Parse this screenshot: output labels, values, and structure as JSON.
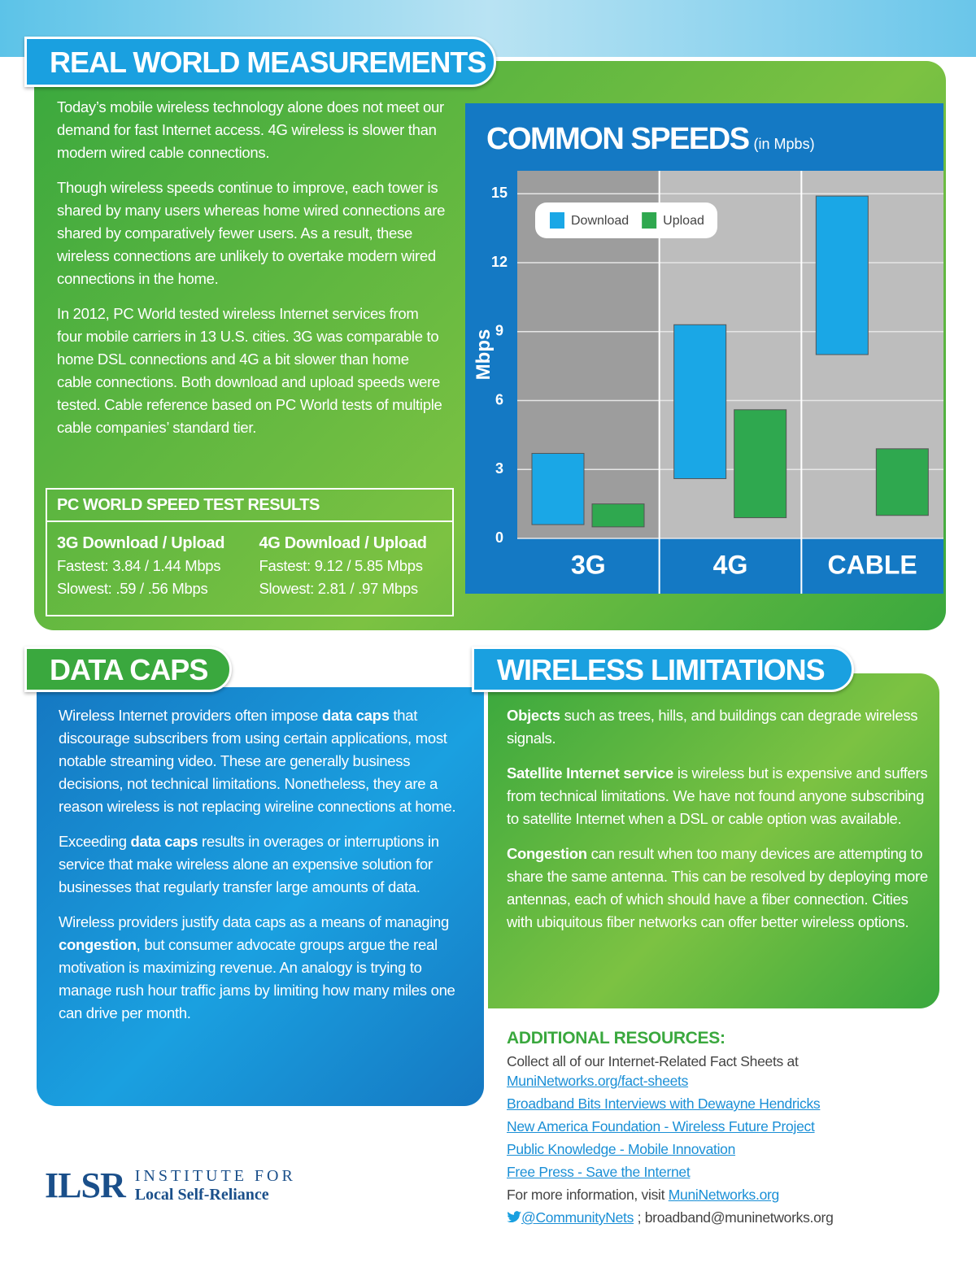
{
  "measurements": {
    "title": "REAL WORLD MEASUREMENTS",
    "paragraphs": [
      [
        "Today’s mobile wireless technology alone does not meet our demand for fast Internet access. 4G wireless is slower than modern wired cable connections."
      ],
      [
        "Though wireless speeds continue to improve, each tower is shared by many users whereas home wired connections are shared by comparatively fewer users. As a result, these wireless connections are unlikely to overtake modern wired connections in the home."
      ],
      [
        "In 2012, PC World tested wireless Internet services from four mobile carriers in 13 U.S. cities. 3G was comparable to home DSL connections and 4G a bit slower than home cable connections. Both download and upload speeds were tested. Cable reference based on PC World tests of multiple cable companies’ standard tier."
      ]
    ],
    "test_results": {
      "title": "PC WORLD SPEED TEST RESULTS",
      "columns": [
        {
          "heading": "3G Download / Upload",
          "rows": [
            "Fastest: 3.84 / 1.44 Mbps",
            "Slowest: .59 / .56 Mbps"
          ]
        },
        {
          "heading": "4G Download / Upload",
          "rows": [
            "Fastest: 9.12 / 5.85 Mbps",
            "Slowest: 2.81 / .97 Mbps"
          ]
        }
      ]
    }
  },
  "chart_data": {
    "type": "floating-bar",
    "title": "COMMON SPEEDS",
    "subtitle": "(in Mpbs)",
    "y_label": "Mbps",
    "categories": [
      "3G",
      "4G",
      "CABLE"
    ],
    "series": [
      {
        "name": "Download",
        "color": "#1aa7e6",
        "low": [
          0.6,
          2.6,
          8.0
        ],
        "high": [
          3.7,
          9.3,
          14.9
        ]
      },
      {
        "name": "Upload",
        "color": "#2fa84f",
        "low": [
          0.5,
          0.9,
          1.0
        ],
        "high": [
          1.5,
          5.6,
          3.9
        ]
      }
    ],
    "ylim": [
      0,
      16
    ],
    "yticks": [
      0,
      3,
      6,
      9,
      12,
      15
    ],
    "grid": true,
    "legend": "top-left"
  },
  "data_caps": {
    "title": "DATA CAPS",
    "paragraphs": [
      [
        "Wireless Internet providers often impose ",
        {
          "text": "data caps",
          "bold": true
        },
        " that discourage subscribers from using certain applications, most notable streaming video. These are generally business decisions, not technical limitations. Nonetheless, they are a reason wireless is not replacing wireline connections at home."
      ],
      [
        "Exceeding ",
        {
          "text": "data caps",
          "bold": true
        },
        " results in overages or interruptions in service that make wireless alone an expensive solution for businesses that regularly transfer large amounts of data."
      ],
      [
        "Wireless providers justify data caps as a means of managing ",
        {
          "text": "congestion",
          "bold": true
        },
        ", but consumer advocate groups argue the real motivation is maximizing revenue. An analogy is trying to manage rush hour traffic jams by limiting how many miles one can drive per month."
      ]
    ]
  },
  "wireless_limitations": {
    "title": "WIRELESS LIMITATIONS",
    "paragraphs": [
      [
        {
          "text": "Objects",
          "bold": true
        },
        " such as trees, hills, and buildings can degrade wireless signals."
      ],
      [
        {
          "text": "Satellite Internet service",
          "bold": true
        },
        " is wireless but is expensive and suffers from technical limitations. We have not found anyone subscribing to satellite Internet when a DSL or cable option was available."
      ],
      [
        {
          "text": "Congestion",
          "bold": true
        },
        " can result when too many devices are attempting to share the same antenna. This can be resolved by deploying more antennas, each of which should have a fiber connection. Cities with ubiquitous fiber networks can offer better wireless options."
      ]
    ]
  },
  "resources": {
    "title": "ADDITIONAL RESOURCES:",
    "intro": "Collect all of our Internet-Related Fact Sheets at",
    "intro_link": "MuniNetworks.org/fact-sheets",
    "links": [
      "Broadband Bits Interviews with Dewayne Hendricks",
      "New America Foundation - Wireless Future Project",
      "Public Knowledge - Mobile Innovation",
      "Free Press - Save the Internet"
    ],
    "more_info": "For more information, visit",
    "more_info_link": "MuniNetworks.org",
    "twitter": "@CommunityNets",
    "email": " ; broadband@muninetworks.org"
  },
  "logo": {
    "mark": "ILSR",
    "line1": "INSTITUTE FOR",
    "line2": "Local Self-Reliance"
  }
}
